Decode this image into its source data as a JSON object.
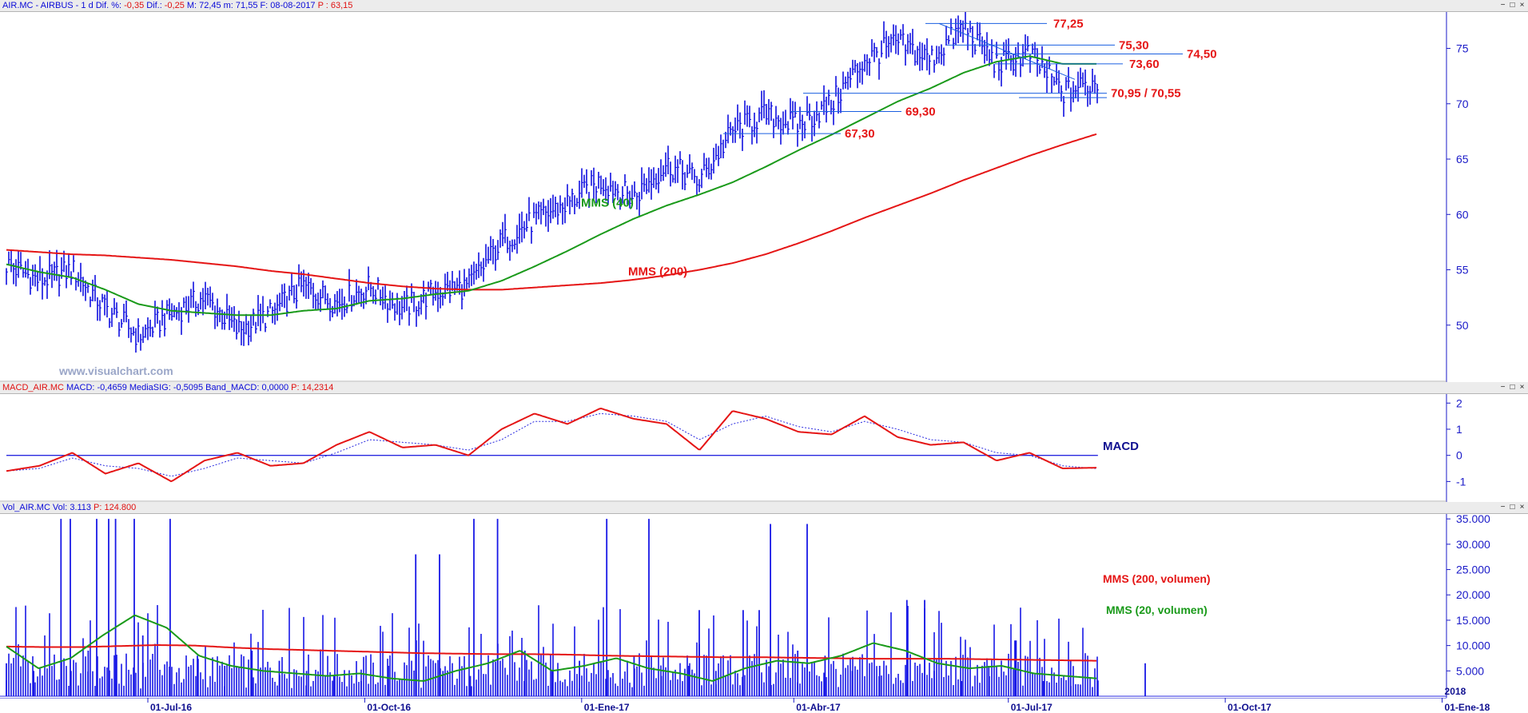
{
  "main_header": {
    "parts": [
      {
        "text": "AIR.MC - AIRBUS - 1 d",
        "color": "blue"
      },
      {
        "text": "Dif. %:",
        "color": "blue"
      },
      {
        "text": "-0,35",
        "color": "red"
      },
      {
        "text": "Dif.:",
        "color": "blue"
      },
      {
        "text": "-0,25",
        "color": "red"
      },
      {
        "text": "M: 72,45",
        "color": "blue"
      },
      {
        "text": "m: 71,55",
        "color": "blue"
      },
      {
        "text": "F: 08-08-2017",
        "color": "blue"
      },
      {
        "text": "P : 63,15",
        "color": "red"
      }
    ]
  },
  "macd_header": {
    "parts": [
      {
        "text": "MACD_AIR.MC",
        "color": "red"
      },
      {
        "text": "MACD: -0,4659",
        "color": "blue"
      },
      {
        "text": "MediaSIG: -0,5095",
        "color": "blue"
      },
      {
        "text": "Band_MACD: 0,0000",
        "color": "blue"
      },
      {
        "text": "P: 14,2314",
        "color": "red"
      }
    ]
  },
  "vol_header": {
    "parts": [
      {
        "text": "Vol_AIR.MC",
        "color": "blue"
      },
      {
        "text": "Vol: 3.113",
        "color": "blue"
      },
      {
        "text": "P: 124.800",
        "color": "red"
      }
    ]
  },
  "window_buttons": [
    "−",
    "□",
    "×"
  ],
  "watermark": "www.visualchart.com",
  "colors": {
    "price": "#1010e0",
    "mms40": "#1a9a1a",
    "mms200": "#e51515",
    "axis": "#1a1ac8",
    "level_line": "#1a5fe0"
  },
  "chart_data": [
    {
      "type": "line",
      "panel": "price",
      "title": "",
      "ylim": [
        45,
        78
      ],
      "yticks": [
        "50",
        "55",
        "60",
        "65",
        "70",
        "75"
      ],
      "x_dates": [
        "2016-05-02",
        "2016-05-16",
        "2016-05-30",
        "2016-06-13",
        "2016-06-27",
        "2016-07-11",
        "2016-07-25",
        "2016-08-08",
        "2016-08-22",
        "2016-09-05",
        "2016-09-19",
        "2016-10-03",
        "2016-10-17",
        "2016-10-31",
        "2016-11-14",
        "2016-11-28",
        "2016-12-12",
        "2016-12-26",
        "2017-01-09",
        "2017-01-23",
        "2017-02-06",
        "2017-02-20",
        "2017-03-06",
        "2017-03-20",
        "2017-04-03",
        "2017-04-17",
        "2017-05-01",
        "2017-05-15",
        "2017-05-29",
        "2017-06-12",
        "2017-06-26",
        "2017-07-10",
        "2017-07-24",
        "2017-08-08"
      ],
      "series": [
        {
          "name": "",
          "key": "price",
          "values": [
            55.5,
            54.0,
            55.0,
            51.5,
            49.0,
            51.0,
            52.5,
            49.5,
            51.0,
            53.5,
            52.0,
            53.5,
            51.5,
            53.0,
            53.5,
            57.5,
            59.5,
            61.0,
            63.0,
            61.5,
            64.5,
            63.0,
            67.5,
            69.0,
            68.0,
            70.0,
            74.0,
            75.5,
            74.0,
            77.0,
            73.5,
            74.5,
            71.0,
            72.0
          ]
        },
        {
          "name": "MMS (40)",
          "key": "mms40",
          "values": [
            55.5,
            54.8,
            54.3,
            53.2,
            51.9,
            51.3,
            51.1,
            50.9,
            50.9,
            51.3,
            51.5,
            52.2,
            52.4,
            52.8,
            53.1,
            54.0,
            55.3,
            56.7,
            58.2,
            59.6,
            60.8,
            61.8,
            62.9,
            64.3,
            65.8,
            67.2,
            68.7,
            70.2,
            71.4,
            72.8,
            73.8,
            74.3,
            73.6,
            73.6
          ]
        },
        {
          "name": "MMS (200)",
          "key": "mms200",
          "values": [
            56.8,
            56.6,
            56.4,
            56.3,
            56.1,
            55.9,
            55.6,
            55.3,
            54.9,
            54.6,
            54.2,
            53.8,
            53.5,
            53.3,
            53.2,
            53.2,
            53.4,
            53.6,
            53.8,
            54.1,
            54.5,
            55.0,
            55.6,
            56.4,
            57.4,
            58.5,
            59.7,
            60.8,
            61.9,
            63.1,
            64.2,
            65.3,
            66.3,
            67.3
          ]
        }
      ],
      "levels": [
        {
          "label": "77,25",
          "value": 77.25
        },
        {
          "label": "75,30",
          "value": 75.3
        },
        {
          "label": "74,50",
          "value": 74.5
        },
        {
          "label": "73,60",
          "value": 73.6
        },
        {
          "label": "70,95 / 70,55",
          "value": 70.95
        },
        {
          "label": "69,30",
          "value": 69.3
        },
        {
          "label": "67,30",
          "value": 67.3
        }
      ],
      "annotations": [
        "MMS (40)",
        "MMS (200)"
      ]
    },
    {
      "type": "line",
      "panel": "macd",
      "ylim": [
        -1.6,
        2.1
      ],
      "yticks": [
        "2",
        "1",
        "0",
        "-1"
      ],
      "label": "MACD",
      "series": [
        {
          "name": "",
          "key": "macd",
          "values": [
            -0.6,
            -0.4,
            0.1,
            -0.7,
            -0.3,
            -1.0,
            -0.2,
            0.1,
            -0.4,
            -0.3,
            0.4,
            0.9,
            0.3,
            0.4,
            0.0,
            1.0,
            1.6,
            1.2,
            1.8,
            1.4,
            1.2,
            0.2,
            1.7,
            1.4,
            0.9,
            0.8,
            1.5,
            0.7,
            0.4,
            0.5,
            -0.2,
            0.1,
            -0.5,
            -0.47
          ]
        },
        {
          "name": "",
          "key": "signal",
          "values": [
            -0.6,
            -0.5,
            -0.1,
            -0.4,
            -0.5,
            -0.8,
            -0.5,
            -0.1,
            -0.2,
            -0.3,
            0.1,
            0.6,
            0.5,
            0.4,
            0.2,
            0.6,
            1.3,
            1.3,
            1.6,
            1.5,
            1.3,
            0.6,
            1.2,
            1.5,
            1.1,
            0.9,
            1.3,
            1.0,
            0.6,
            0.5,
            0.1,
            0.0,
            -0.4,
            -0.51
          ]
        }
      ],
      "zero_line": 0
    },
    {
      "type": "bar",
      "panel": "volume",
      "ylim": [
        0,
        35500
      ],
      "yticks": [
        "5.000",
        "10.000",
        "15.000",
        "20.000",
        "25.000",
        "30.000",
        "35.000"
      ],
      "values": [
        6500,
        5000,
        35000,
        9000,
        35000,
        12000,
        35000,
        8000,
        6000,
        9000,
        7000,
        5000,
        4000,
        3000,
        6000,
        28000,
        5000,
        4000,
        35000,
        9000,
        5000,
        7000,
        35000,
        8000,
        4000,
        6000,
        5000,
        17000,
        34000,
        9000,
        8000,
        5000,
        6000,
        19000,
        5000,
        3000,
        6000,
        11000,
        3000,
        7000,
        3113
      ],
      "series": [
        {
          "name": "MMS (200, volumen)",
          "key": "vol200",
          "values": [
            9800,
            9700,
            9700,
            9900,
            10100,
            10000,
            9600,
            9300,
            9100,
            8900,
            8700,
            8500,
            8400,
            8300,
            8300,
            8200,
            8000,
            7900,
            7800,
            7700,
            7700,
            7600,
            7500,
            7400,
            7400,
            7400,
            7300,
            7200,
            7100,
            7000
          ]
        },
        {
          "name": "MMS (20, volumen)",
          "key": "vol20",
          "values": [
            9800,
            5500,
            7500,
            12000,
            16000,
            13500,
            8000,
            6000,
            5000,
            4500,
            4000,
            4500,
            3500,
            3000,
            5000,
            6500,
            9000,
            5000,
            6000,
            7500,
            5500,
            4500,
            3000,
            5500,
            7000,
            6500,
            8000,
            10500,
            9000,
            6500,
            5500,
            6000,
            4500,
            4000,
            3500
          ]
        }
      ]
    }
  ],
  "x_axis": {
    "labels": [
      "01-Jul-16",
      "01-Oct-16",
      "01-Ene-17",
      "01-Abr-17",
      "01-Jul-17",
      "01-Oct-17",
      "01-Ene-18"
    ],
    "dates": [
      "2016-07-01",
      "2016-10-01",
      "2017-01-01",
      "2017-04-01",
      "2017-07-01",
      "2017-10-01",
      "2018-01-01"
    ],
    "year_marker": "2018",
    "year_date": "2018-01-01"
  }
}
